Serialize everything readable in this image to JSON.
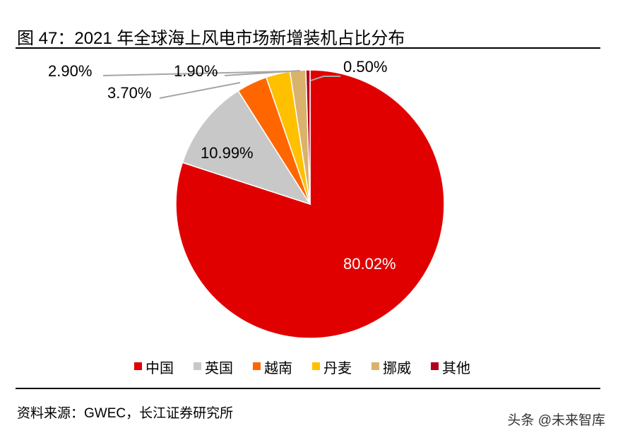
{
  "title": "图 47：2021 年全球海上风电市场新增装机占比分布",
  "source": "资料来源：GWEC，长江证券研究所",
  "watermark": "头条 @未来智库",
  "chart_data": {
    "type": "pie",
    "title": "图 47：2021 年全球海上风电市场新增装机占比分布",
    "start": "12 o'clock, clockwise",
    "legend_position": "bottom",
    "slices": [
      {
        "name": "中国",
        "value": 80.02,
        "label": "80.02%",
        "color": "#E00000"
      },
      {
        "name": "英国",
        "value": 10.99,
        "label": "10.99%",
        "color": "#C8C8C8"
      },
      {
        "name": "越南",
        "value": 3.7,
        "label": "3.70%",
        "color": "#FF6600"
      },
      {
        "name": "丹麦",
        "value": 2.9,
        "label": "2.90%",
        "color": "#FFC000"
      },
      {
        "name": "挪威",
        "value": 1.9,
        "label": "1.90%",
        "color": "#D9B36B"
      },
      {
        "name": "其他",
        "value": 0.5,
        "label": "0.50%",
        "color": "#B0001E"
      }
    ]
  }
}
